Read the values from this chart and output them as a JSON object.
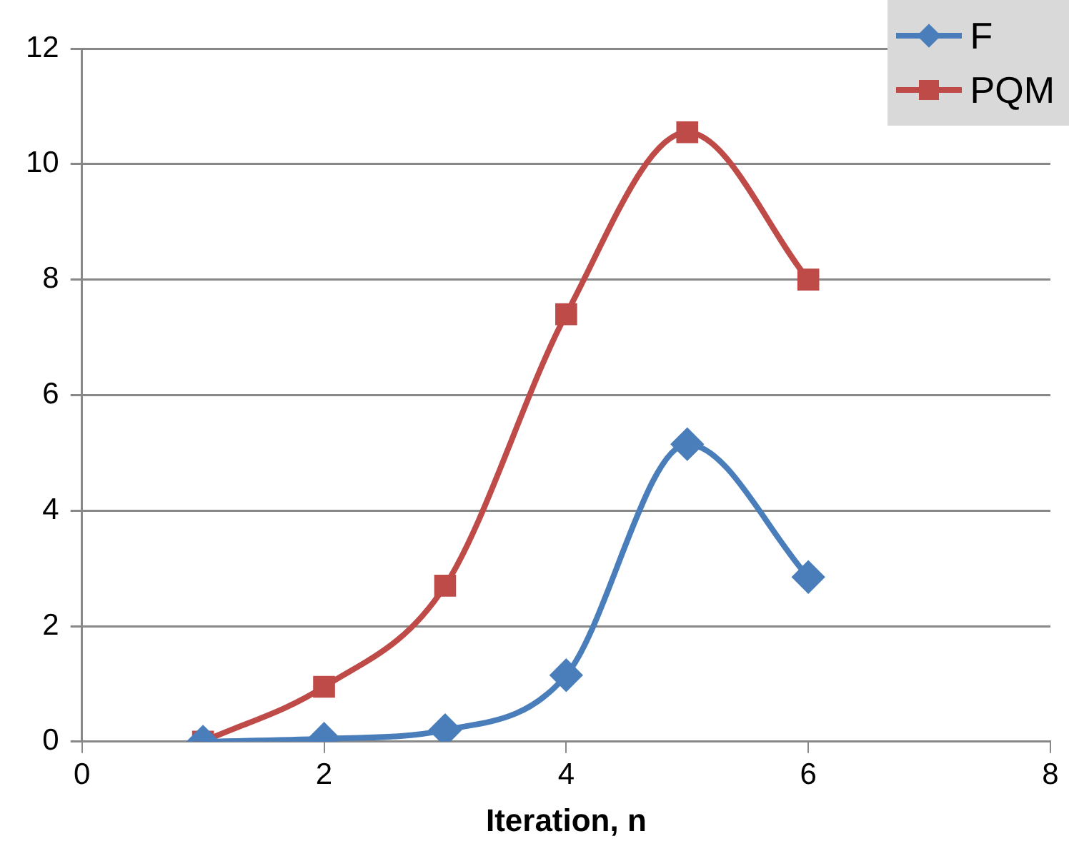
{
  "chart_data": {
    "type": "line",
    "xlabel": "Iteration, n",
    "xlim": [
      0,
      8
    ],
    "xticks": [
      0,
      2,
      4,
      6,
      8
    ],
    "ylim": [
      0,
      12
    ],
    "yticks": [
      0,
      2,
      4,
      6,
      8,
      10,
      12
    ],
    "grid": "y",
    "legend": "top right",
    "line_style": "solid",
    "series": [
      {
        "name": "F",
        "color": "#4a7ebb",
        "marker": "diamond",
        "x": [
          1,
          2,
          3,
          4,
          5,
          6
        ],
        "values": [
          0,
          0.05,
          0.2,
          1.15,
          5.15,
          2.85
        ]
      },
      {
        "name": "PQM",
        "color": "#be4b48",
        "marker": "square",
        "x": [
          1,
          2,
          3,
          4,
          5,
          6
        ],
        "values": [
          0,
          0.95,
          2.7,
          7.4,
          10.55,
          8.0
        ]
      }
    ]
  }
}
